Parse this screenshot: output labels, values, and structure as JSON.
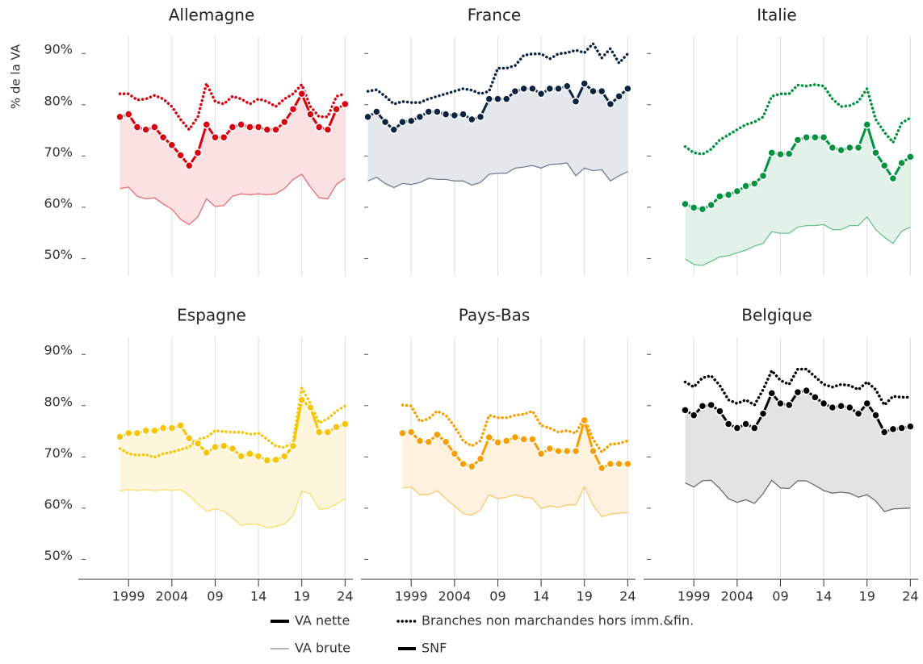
{
  "axes": {
    "ylabel": "% de la VA",
    "xlim": [
      1993.2,
      2024.9
    ],
    "ylim": [
      45.5,
      93.5
    ],
    "xticks": [
      {
        "value": 1999,
        "label": "1999"
      },
      {
        "value": 2004,
        "label": "2004"
      },
      {
        "value": 2009,
        "label": "09"
      },
      {
        "value": 2014,
        "label": "14"
      },
      {
        "value": 2019,
        "label": "19"
      },
      {
        "value": 2024,
        "label": "24"
      }
    ],
    "yticks": [
      {
        "value": 50,
        "label": "50%"
      },
      {
        "value": 60,
        "label": "60%"
      },
      {
        "value": 70,
        "label": "70%"
      },
      {
        "value": 80,
        "label": "80%"
      },
      {
        "value": 90,
        "label": "90%"
      }
    ]
  },
  "legend": {
    "line": [
      "VA nette",
      "VA brute"
    ],
    "sector": [
      "Branches non marchandes hors imm.&fin.",
      "SNF"
    ]
  },
  "chart_data": [
    {
      "type": "line",
      "title": "Allemagne",
      "color": "#d7000f",
      "area_color": "#fbe1e1",
      "x": [
        1998,
        1999,
        2000,
        2001,
        2002,
        2003,
        2004,
        2005,
        2006,
        2007,
        2008,
        2009,
        2010,
        2011,
        2012,
        2013,
        2014,
        2015,
        2016,
        2017,
        2018,
        2019,
        2020,
        2021,
        2022,
        2023,
        2024
      ],
      "va_nette": [
        77,
        77.5,
        75,
        74.5,
        75,
        73,
        71.5,
        69.5,
        67.5,
        70,
        75.5,
        73,
        73,
        75,
        75.5,
        75,
        75,
        74.5,
        74.5,
        76,
        78.5,
        81.5,
        77.5,
        75,
        74.5,
        78.5,
        79.5
      ],
      "va_brute": [
        63,
        63.3,
        61.5,
        61,
        61.2,
        60,
        59,
        57,
        56,
        57.5,
        61,
        59.5,
        59.7,
        61.5,
        62,
        61.8,
        62,
        61.8,
        62,
        63,
        64.8,
        65.8,
        63.3,
        61.2,
        61,
        63.8,
        65
      ],
      "branches": [
        81.5,
        81.5,
        80.3,
        80.5,
        81.2,
        80.5,
        79,
        76.5,
        74.5,
        77,
        83.5,
        80,
        79.5,
        81,
        80.5,
        79.5,
        80.5,
        80,
        79,
        80.5,
        81.5,
        83.3,
        79,
        77,
        77,
        81,
        81.5
      ]
    },
    {
      "type": "line",
      "title": "France",
      "color": "#0c2340",
      "area_color": "#e4e7ec",
      "x": [
        1994,
        1995,
        1996,
        1997,
        1998,
        1999,
        2000,
        2001,
        2002,
        2003,
        2004,
        2005,
        2006,
        2007,
        2008,
        2009,
        2010,
        2011,
        2012,
        2013,
        2014,
        2015,
        2016,
        2017,
        2018,
        2019,
        2020,
        2021,
        2022,
        2023,
        2024
      ],
      "va_nette": [
        77,
        78,
        76,
        74.5,
        76,
        76.2,
        77,
        78,
        78,
        77.5,
        77.3,
        77.5,
        76.5,
        77,
        80.5,
        80.5,
        80.5,
        82,
        82.5,
        82.5,
        81.5,
        82.5,
        82.5,
        83,
        80,
        83.5,
        82,
        82,
        79.5,
        81,
        82.5
      ],
      "va_brute": [
        64.5,
        65.2,
        64,
        63.2,
        64,
        63.8,
        64.2,
        65,
        64.8,
        64.8,
        64.5,
        64.5,
        63.7,
        64.2,
        65.8,
        66,
        66,
        67,
        67.2,
        67.5,
        67,
        67.7,
        67.8,
        68,
        65.5,
        67,
        66.5,
        66.7,
        64.5,
        65.5,
        66.3
      ],
      "branches": [
        82,
        82.3,
        81,
        79.5,
        80,
        79.8,
        79.8,
        80.5,
        81,
        81.5,
        82,
        82.5,
        82.2,
        81.5,
        82,
        86.5,
        86.5,
        87,
        89,
        89.3,
        89.3,
        88.3,
        89.3,
        89.5,
        90,
        89.5,
        91.3,
        88.5,
        90.3,
        87.5,
        89.3
      ]
    },
    {
      "type": "line",
      "title": "Italie",
      "color": "#00923f",
      "area_color": "#e3f2e8",
      "x": [
        1998,
        1999,
        2000,
        2001,
        2002,
        2003,
        2004,
        2005,
        2006,
        2007,
        2008,
        2009,
        2010,
        2011,
        2012,
        2013,
        2014,
        2015,
        2016,
        2017,
        2018,
        2019,
        2020,
        2021,
        2022,
        2023,
        2024
      ],
      "va_nette": [
        60,
        59.3,
        59,
        59.8,
        61.5,
        61.8,
        62.5,
        63.5,
        64,
        65.5,
        70,
        69.7,
        69.8,
        72.5,
        73,
        73,
        73,
        71,
        70.5,
        71,
        71,
        75.5,
        70,
        67.5,
        65,
        68,
        69.2
      ],
      "va_brute": [
        49.3,
        48.2,
        48,
        48.8,
        49.7,
        49.9,
        50.5,
        51,
        51.8,
        52.3,
        54.6,
        54.3,
        54.3,
        55.5,
        55.8,
        55.8,
        56,
        55,
        55,
        55.8,
        55.8,
        57.5,
        55,
        53.5,
        52.3,
        54.7,
        55.5
      ],
      "branches": [
        71.2,
        70,
        69.7,
        70.7,
        72.5,
        73.5,
        74.5,
        75.5,
        76,
        77,
        81,
        81.5,
        81.5,
        83.2,
        83,
        83.3,
        83,
        80.5,
        79,
        79.2,
        80,
        82.5,
        76.5,
        74,
        72,
        75.8,
        76.8
      ]
    },
    {
      "type": "line",
      "title": "Espagne",
      "color": "#f7c500",
      "area_color": "#fef6dc",
      "x": [
        1998,
        1999,
        2000,
        2001,
        2002,
        2003,
        2004,
        2005,
        2006,
        2007,
        2008,
        2009,
        2010,
        2011,
        2012,
        2013,
        2014,
        2015,
        2016,
        2017,
        2018,
        2019,
        2020,
        2021,
        2022,
        2023,
        2024
      ],
      "va_nette": [
        73.3,
        74,
        74,
        74.5,
        74.5,
        75,
        75,
        75.5,
        73,
        72,
        70.2,
        71.3,
        71.5,
        71,
        69.5,
        70,
        69.5,
        68.7,
        68.8,
        69.5,
        71.5,
        80.5,
        79,
        74.2,
        74.2,
        75.2,
        75.8
      ],
      "va_brute": [
        62.7,
        63,
        62.8,
        63,
        62.8,
        63,
        62.8,
        63,
        61.8,
        60.2,
        58.8,
        59.2,
        58.8,
        57.5,
        56,
        56.3,
        56.2,
        55.5,
        55.8,
        56.3,
        58,
        62.7,
        62.2,
        59.2,
        59.3,
        60.2,
        61.2
      ],
      "branches": [
        71,
        70,
        69.7,
        69.8,
        69.3,
        70,
        70.3,
        70.8,
        71.3,
        72.8,
        73.2,
        74.5,
        74.3,
        74.2,
        74.2,
        73.8,
        74,
        72.8,
        71.5,
        71.2,
        72.3,
        82.8,
        79.8,
        76,
        76.8,
        78.3,
        79.3
      ]
    },
    {
      "type": "line",
      "title": "Pays-Bas",
      "color": "#f5a000",
      "area_color": "#fef2de",
      "x": [
        1998,
        1999,
        2000,
        2001,
        2002,
        2003,
        2004,
        2005,
        2006,
        2007,
        2008,
        2009,
        2010,
        2011,
        2012,
        2013,
        2014,
        2015,
        2016,
        2017,
        2018,
        2019,
        2020,
        2021,
        2022,
        2023,
        2024
      ],
      "va_nette": [
        74,
        74.2,
        72.5,
        72.3,
        73.7,
        72.3,
        70,
        68,
        67.5,
        69,
        73.2,
        72.2,
        72.5,
        73.2,
        72.8,
        72.8,
        70,
        71,
        70.5,
        70.5,
        70.5,
        76.5,
        70.5,
        67.2,
        68,
        68,
        68
      ],
      "va_brute": [
        63.3,
        63.5,
        62,
        62,
        62.8,
        61.2,
        59.8,
        58.3,
        58,
        59,
        62,
        61.2,
        61.5,
        62,
        61.5,
        61.3,
        59.3,
        59.8,
        59.5,
        60,
        60,
        63.5,
        60,
        57.7,
        58.2,
        58.4,
        58.5
      ],
      "branches": [
        79.5,
        79.3,
        76.3,
        76.8,
        78.3,
        77.5,
        75.3,
        72.5,
        71.5,
        72.5,
        77.5,
        77,
        77,
        77.5,
        77.7,
        78.3,
        75.5,
        75,
        74.2,
        74.5,
        74,
        77,
        72.8,
        70.3,
        71.8,
        72,
        72.5
      ]
    },
    {
      "type": "line",
      "title": "Belgique",
      "color": "#000000",
      "area_color": "#e3e3e3",
      "x": [
        1998,
        1999,
        2000,
        2001,
        2002,
        2003,
        2004,
        2005,
        2006,
        2007,
        2008,
        2009,
        2010,
        2011,
        2012,
        2013,
        2014,
        2015,
        2016,
        2017,
        2018,
        2019,
        2020,
        2021,
        2022,
        2023,
        2024
      ],
      "va_nette": [
        78.5,
        77.5,
        79.3,
        79.5,
        78.3,
        75.8,
        75,
        75.8,
        75,
        77.8,
        81.8,
        79.8,
        79.5,
        82,
        82.3,
        81,
        79.8,
        79,
        79.3,
        79,
        77.8,
        79.8,
        77.5,
        74.2,
        74.8,
        75,
        75.3
      ],
      "va_brute": [
        64.3,
        63.5,
        64.7,
        64.8,
        63.2,
        61.2,
        60.5,
        61,
        60.3,
        62.2,
        64.8,
        63.3,
        63.2,
        64.7,
        64.7,
        63.8,
        62.8,
        62.3,
        62.5,
        62.3,
        61.5,
        62,
        60.8,
        58.7,
        59.2,
        59.3,
        59.4
      ],
      "branches": [
        84,
        83,
        84.8,
        85.2,
        83.3,
        80.5,
        79.8,
        80.5,
        79.5,
        82.5,
        86.2,
        84.3,
        83.5,
        86.5,
        86.5,
        85,
        83.5,
        83,
        83.5,
        83.3,
        82.5,
        84,
        82.5,
        79.5,
        81.2,
        81,
        81
      ]
    }
  ]
}
